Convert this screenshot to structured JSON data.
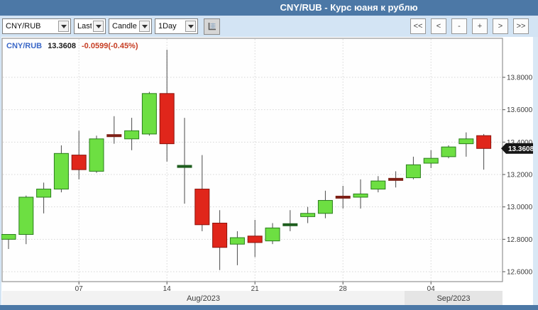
{
  "window": {
    "title": "CNY/RUB - Курс юаня к рублю"
  },
  "toolbar": {
    "symbol": "CNY/RUB",
    "price_type": "Last",
    "chart_type": "Candle",
    "period": "1Day",
    "nav": [
      "<<",
      "<",
      "-",
      "+",
      ">",
      ">>"
    ]
  },
  "legend": {
    "symbol": "CNY/RUB",
    "last": "13.3608",
    "change": "-0.0599(-0.45%)"
  },
  "colors": {
    "titlebar": "#4c78a6",
    "toolbar": "#d3e4f4",
    "candle_up": "#6ddf42",
    "candle_up_border": "#2a7d1c",
    "candle_down": "#e0261b",
    "candle_down_border": "#8d140d",
    "doji_up": "#1e5e1e",
    "doji_down": "#7e2016",
    "legend_symbol": "#3b68c8",
    "legend_change": "#c63c22"
  },
  "chart_data": {
    "type": "candlestick",
    "symbol": "CNY/RUB",
    "title": "CNY/RUB - Курс юаня к рублю",
    "period": "1Day",
    "last_price": 13.3608,
    "last_price_label": "13.3608",
    "y_axis": {
      "ticks": [
        {
          "value": 13.8,
          "label": "13.8000"
        },
        {
          "value": 13.6,
          "label": "13.6000"
        },
        {
          "value": 13.4,
          "label": "13.4000"
        },
        {
          "value": 13.2,
          "label": "13.2000"
        },
        {
          "value": 13.0,
          "label": "13.0000"
        },
        {
          "value": 12.8,
          "label": "12.8000"
        },
        {
          "value": 12.6,
          "label": "12.6000"
        }
      ]
    },
    "x_axis": {
      "ticks": [
        {
          "index": 4,
          "label": "07"
        },
        {
          "index": 9,
          "label": "14"
        },
        {
          "index": 14,
          "label": "21"
        },
        {
          "index": 19,
          "label": "28"
        },
        {
          "index": 24,
          "label": "04"
        }
      ],
      "months": [
        {
          "label": "Aug/2023",
          "from_index": 0,
          "to_index": 22,
          "shaded": false
        },
        {
          "label": "Sep/2023",
          "from_index": 23,
          "to_index": 27,
          "shaded": true
        }
      ]
    },
    "candles": [
      {
        "o": 12.8,
        "h": 12.83,
        "l": 12.74,
        "c": 12.83,
        "color": "green"
      },
      {
        "o": 12.83,
        "h": 13.07,
        "l": 12.77,
        "c": 13.06,
        "color": "green"
      },
      {
        "o": 13.06,
        "h": 13.15,
        "l": 12.96,
        "c": 13.11,
        "color": "green"
      },
      {
        "o": 13.11,
        "h": 13.38,
        "l": 13.09,
        "c": 13.33,
        "color": "green"
      },
      {
        "o": 13.32,
        "h": 13.47,
        "l": 13.17,
        "c": 13.23,
        "color": "red"
      },
      {
        "o": 13.22,
        "h": 13.44,
        "l": 13.21,
        "c": 13.42,
        "color": "green"
      },
      {
        "o": 13.44,
        "h": 13.56,
        "l": 13.39,
        "c": 13.44,
        "color": "darkred"
      },
      {
        "o": 13.42,
        "h": 13.55,
        "l": 13.35,
        "c": 13.47,
        "color": "green"
      },
      {
        "o": 13.45,
        "h": 13.71,
        "l": 13.44,
        "c": 13.7,
        "color": "green"
      },
      {
        "o": 13.7,
        "h": 13.97,
        "l": 13.28,
        "c": 13.39,
        "color": "red"
      },
      {
        "o": 13.25,
        "h": 13.55,
        "l": 13.02,
        "c": 13.25,
        "color": "darkgreen"
      },
      {
        "o": 13.11,
        "h": 13.32,
        "l": 12.85,
        "c": 12.89,
        "color": "red"
      },
      {
        "o": 12.9,
        "h": 12.98,
        "l": 12.61,
        "c": 12.75,
        "color": "red"
      },
      {
        "o": 12.77,
        "h": 12.85,
        "l": 12.64,
        "c": 12.81,
        "color": "green"
      },
      {
        "o": 12.82,
        "h": 12.92,
        "l": 12.69,
        "c": 12.78,
        "color": "red"
      },
      {
        "o": 12.79,
        "h": 12.9,
        "l": 12.77,
        "c": 12.87,
        "color": "green"
      },
      {
        "o": 12.89,
        "h": 12.98,
        "l": 12.85,
        "c": 12.89,
        "color": "darkgreen"
      },
      {
        "o": 12.94,
        "h": 13.0,
        "l": 12.9,
        "c": 12.96,
        "color": "green"
      },
      {
        "o": 12.96,
        "h": 13.1,
        "l": 12.93,
        "c": 13.04,
        "color": "green"
      },
      {
        "o": 13.06,
        "h": 13.13,
        "l": 12.99,
        "c": 13.06,
        "color": "darkred"
      },
      {
        "o": 13.06,
        "h": 13.17,
        "l": 12.99,
        "c": 13.08,
        "color": "green"
      },
      {
        "o": 13.11,
        "h": 13.19,
        "l": 13.09,
        "c": 13.16,
        "color": "green"
      },
      {
        "o": 13.17,
        "h": 13.22,
        "l": 13.12,
        "c": 13.17,
        "color": "darkred"
      },
      {
        "o": 13.18,
        "h": 13.31,
        "l": 13.17,
        "c": 13.26,
        "color": "green"
      },
      {
        "o": 13.27,
        "h": 13.35,
        "l": 13.24,
        "c": 13.3,
        "color": "green"
      },
      {
        "o": 13.31,
        "h": 13.38,
        "l": 13.3,
        "c": 13.37,
        "color": "green"
      },
      {
        "o": 13.39,
        "h": 13.46,
        "l": 13.31,
        "c": 13.42,
        "color": "green"
      },
      {
        "o": 13.44,
        "h": 13.45,
        "l": 13.23,
        "c": 13.3608,
        "color": "red"
      }
    ]
  }
}
